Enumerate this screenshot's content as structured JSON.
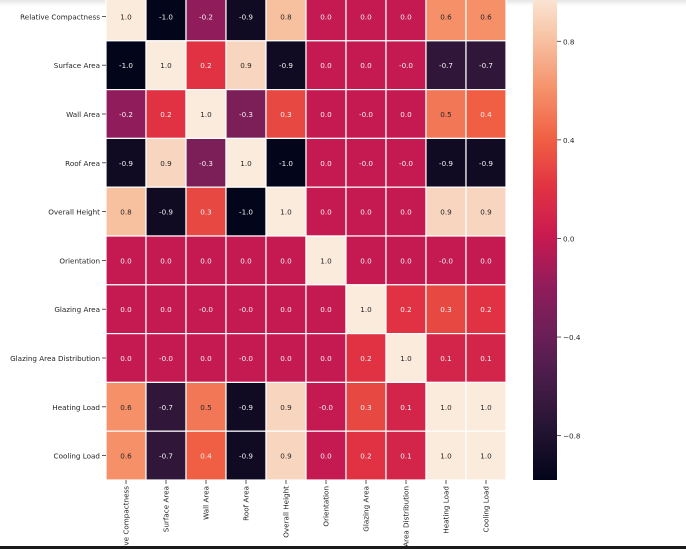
{
  "chart_data": {
    "type": "heatmap",
    "colormap": "rocket",
    "labels": [
      "Relative Compactness",
      "Surface Area",
      "Wall Area",
      "Roof Area",
      "Overall Height",
      "Orientation",
      "Glazing Area",
      "Glazing Area Distribution",
      "Heating Load",
      "Cooling Load"
    ],
    "matrix": [
      [
        "1.0",
        "-1.0",
        "-0.2",
        "-0.9",
        "0.8",
        "0.0",
        "0.0",
        "0.0",
        "0.6",
        "0.6"
      ],
      [
        "-1.0",
        "1.0",
        "0.2",
        "0.9",
        "-0.9",
        "0.0",
        "0.0",
        "-0.0",
        "-0.7",
        "-0.7"
      ],
      [
        "-0.2",
        "0.2",
        "1.0",
        "-0.3",
        "0.3",
        "0.0",
        "-0.0",
        "0.0",
        "0.5",
        "0.4"
      ],
      [
        "-0.9",
        "0.9",
        "-0.3",
        "1.0",
        "-1.0",
        "0.0",
        "-0.0",
        "-0.0",
        "-0.9",
        "-0.9"
      ],
      [
        "0.8",
        "-0.9",
        "0.3",
        "-1.0",
        "1.0",
        "0.0",
        "0.0",
        "0.0",
        "0.9",
        "0.9"
      ],
      [
        "0.0",
        "0.0",
        "0.0",
        "0.0",
        "0.0",
        "1.0",
        "0.0",
        "0.0",
        "-0.0",
        "0.0"
      ],
      [
        "0.0",
        "0.0",
        "-0.0",
        "-0.0",
        "0.0",
        "0.0",
        "1.0",
        "0.2",
        "0.3",
        "0.2"
      ],
      [
        "0.0",
        "-0.0",
        "0.0",
        "-0.0",
        "0.0",
        "0.0",
        "0.2",
        "1.0",
        "0.1",
        "0.1"
      ],
      [
        "0.6",
        "-0.7",
        "0.5",
        "-0.9",
        "0.9",
        "-0.0",
        "0.3",
        "0.1",
        "1.0",
        "1.0"
      ],
      [
        "0.6",
        "-0.7",
        "0.4",
        "-0.9",
        "0.9",
        "0.0",
        "0.2",
        "0.1",
        "1.0",
        "1.0"
      ]
    ],
    "vmin": -0.98,
    "vmax": 1.0,
    "colorbar_ticks": [
      "0.8",
      "0.4",
      "0.0",
      "−0.4",
      "−0.8"
    ],
    "colorbar_tick_values": [
      0.8,
      0.4,
      0.0,
      -0.4,
      -0.8
    ],
    "grid_lines_color": "#ffffff"
  }
}
